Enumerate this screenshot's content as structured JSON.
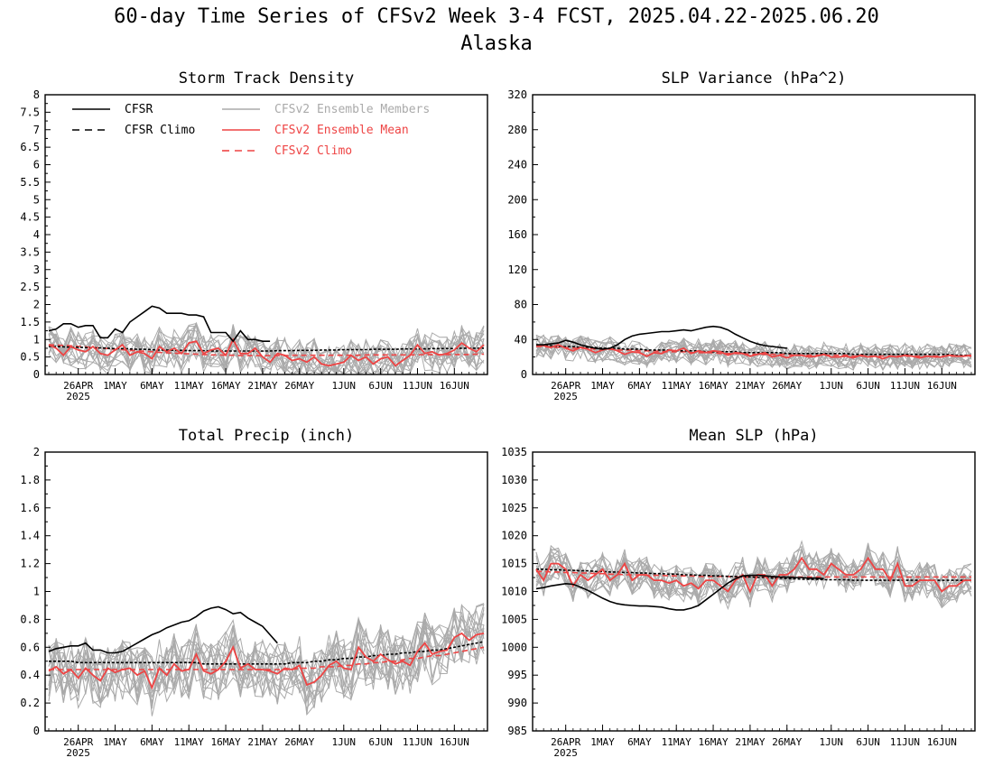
{
  "figure": {
    "title": "60-day Time Series of CFSv2 Week 3-4 FCST, 2025.04.22-2025.06.20",
    "region": "Alaska"
  },
  "legend": {
    "entries": [
      {
        "label": "CFSR",
        "color": "#000000",
        "dash": "solid"
      },
      {
        "label": "CFSR Climo",
        "color": "#000000",
        "dash": "dashed"
      },
      {
        "label": "CFSv2 Ensemble Members",
        "color": "#aaaaaa",
        "dash": "solid"
      },
      {
        "label": "CFSv2 Ensemble Mean",
        "color": "#ee4444",
        "dash": "solid"
      },
      {
        "label": "CFSv2 Climo",
        "color": "#ee4444",
        "dash": "dashed"
      }
    ]
  },
  "colors": {
    "cfsr": "#000000",
    "members": "#aaaaaa",
    "ens_mean": "#ee4444",
    "cfsv2_climo": "#ee4444"
  },
  "x_axis": {
    "day_count": 60,
    "start_date": "2025-04-22",
    "end_date": "2025-06-20",
    "ticks": [
      {
        "day": 4,
        "label": "26APR",
        "sublabel": "2025"
      },
      {
        "day": 9,
        "label": "1MAY"
      },
      {
        "day": 14,
        "label": "6MAY"
      },
      {
        "day": 19,
        "label": "11MAY"
      },
      {
        "day": 24,
        "label": "16MAY"
      },
      {
        "day": 29,
        "label": "21MAY"
      },
      {
        "day": 34,
        "label": "26MAY"
      },
      {
        "day": 40,
        "label": "1JUN"
      },
      {
        "day": 45,
        "label": "6JUN"
      },
      {
        "day": 50,
        "label": "11JUN"
      },
      {
        "day": 55,
        "label": "16JUN"
      }
    ]
  },
  "chart_data": [
    {
      "type": "line",
      "title": "Storm Track Density",
      "ylim": [
        0,
        8
      ],
      "yticks": [
        "0",
        "0.5",
        "1",
        "1.5",
        "2",
        "2.5",
        "3",
        "3.5",
        "4",
        "4.5",
        "5",
        "5.5",
        "6",
        "6.5",
        "7",
        "7.5",
        "8"
      ],
      "cfsr": [
        1.25,
        1.3,
        1.45,
        1.45,
        1.35,
        1.4,
        1.4,
        1.05,
        1.05,
        1.3,
        1.2,
        1.5,
        1.65,
        1.8,
        1.95,
        1.9,
        1.75,
        1.75,
        1.75,
        1.7,
        1.7,
        1.65,
        1.2,
        1.2,
        1.2,
        0.95,
        1.25,
        1.0,
        1.0,
        0.95,
        0.95
      ],
      "cfsr_climo": [
        0.8,
        0.8,
        0.79,
        0.78,
        0.78,
        0.77,
        0.76,
        0.76,
        0.75,
        0.74,
        0.74,
        0.73,
        0.72,
        0.72,
        0.71,
        0.7,
        0.7,
        0.69,
        0.69,
        0.68,
        0.68,
        0.68,
        0.67,
        0.67,
        0.67,
        0.67,
        0.67,
        0.67,
        0.67,
        0.67,
        0.67,
        0.68,
        0.68,
        0.68,
        0.69,
        0.69,
        0.69,
        0.7,
        0.7,
        0.7,
        0.71,
        0.71,
        0.71,
        0.71,
        0.72,
        0.72,
        0.72,
        0.72,
        0.73,
        0.73,
        0.73,
        0.73,
        0.74,
        0.74,
        0.74,
        0.74,
        0.75,
        0.75,
        0.75,
        0.75
      ],
      "ens_mean": [
        0.85,
        0.75,
        0.55,
        0.8,
        0.7,
        0.65,
        0.8,
        0.6,
        0.55,
        0.7,
        0.85,
        0.55,
        0.65,
        0.6,
        0.45,
        0.8,
        0.65,
        0.75,
        0.6,
        0.9,
        0.95,
        0.6,
        0.7,
        0.75,
        0.55,
        1.0,
        0.6,
        0.6,
        0.75,
        0.5,
        0.35,
        0.6,
        0.55,
        0.4,
        0.45,
        0.35,
        0.5,
        0.3,
        0.25,
        0.3,
        0.35,
        0.55,
        0.4,
        0.5,
        0.3,
        0.45,
        0.5,
        0.25,
        0.4,
        0.55,
        0.85,
        0.6,
        0.65,
        0.55,
        0.6,
        0.7,
        0.9,
        0.75,
        0.65,
        0.85
      ],
      "cfsv2_climo": [
        0.85,
        0.84,
        0.83,
        0.82,
        0.8,
        0.79,
        0.77,
        0.76,
        0.74,
        0.72,
        0.71,
        0.69,
        0.68,
        0.66,
        0.65,
        0.63,
        0.62,
        0.61,
        0.6,
        0.59,
        0.58,
        0.57,
        0.56,
        0.56,
        0.55,
        0.55,
        0.54,
        0.54,
        0.54,
        0.54,
        0.54,
        0.54,
        0.54,
        0.55,
        0.55,
        0.55,
        0.55,
        0.55,
        0.55,
        0.55,
        0.55,
        0.55,
        0.55,
        0.56,
        0.56,
        0.56,
        0.56,
        0.56,
        0.56,
        0.56,
        0.56,
        0.57,
        0.57,
        0.57,
        0.57,
        0.57,
        0.57,
        0.57,
        0.58,
        0.58
      ],
      "member_spread": 0.55,
      "member_min": 0
    },
    {
      "type": "line",
      "title": "SLP Variance (hPa^2)",
      "ylim": [
        0,
        320
      ],
      "yticks": [
        "0",
        "40",
        "80",
        "120",
        "160",
        "200",
        "240",
        "280",
        "320"
      ],
      "cfsr": [
        34,
        34,
        35,
        36,
        39,
        37,
        34,
        32,
        30,
        29,
        30,
        34,
        40,
        44,
        46,
        47,
        48,
        49,
        49,
        50,
        51,
        50,
        52,
        54,
        55,
        54,
        51,
        46,
        42,
        38,
        35,
        33,
        32,
        31,
        30
      ],
      "cfsr_climo": [
        33,
        33,
        33,
        32,
        32,
        32,
        31,
        31,
        31,
        30,
        30,
        30,
        29,
        29,
        29,
        28,
        28,
        28,
        28,
        27,
        27,
        27,
        27,
        26,
        26,
        26,
        26,
        26,
        25,
        25,
        25,
        25,
        25,
        25,
        24,
        24,
        24,
        24,
        24,
        24,
        24,
        24,
        24,
        23,
        23,
        23,
        23,
        23,
        23,
        23,
        23,
        23,
        23,
        23,
        23,
        23,
        23,
        22,
        22,
        22
      ],
      "ens_mean": [
        33,
        33,
        31,
        34,
        30,
        27,
        31,
        29,
        25,
        28,
        30,
        27,
        23,
        26,
        25,
        21,
        25,
        24,
        28,
        27,
        30,
        24,
        27,
        25,
        27,
        26,
        22,
        25,
        24,
        21,
        23,
        25,
        20,
        22,
        19,
        22,
        22,
        20,
        21,
        23,
        20,
        20,
        21,
        19,
        22,
        20,
        21,
        18,
        21,
        20,
        22,
        21,
        19,
        21,
        20,
        20,
        22,
        21,
        21,
        22
      ],
      "cfsv2_climo": [
        32,
        32,
        31,
        31,
        31,
        30,
        30,
        30,
        29,
        29,
        29,
        28,
        28,
        28,
        27,
        27,
        27,
        26,
        26,
        26,
        26,
        25,
        25,
        25,
        25,
        24,
        24,
        24,
        24,
        23,
        23,
        23,
        23,
        23,
        23,
        22,
        22,
        22,
        22,
        22,
        22,
        22,
        22,
        21,
        21,
        21,
        21,
        21,
        21,
        21,
        21,
        21,
        21,
        21,
        21,
        21,
        21,
        21,
        21,
        21
      ],
      "member_spread": 14,
      "member_min": 5
    },
    {
      "type": "line",
      "title": "Total Precip (inch)",
      "ylim": [
        0,
        2
      ],
      "yticks": [
        "0",
        "0.2",
        "0.4",
        "0.6",
        "0.8",
        "1",
        "1.2",
        "1.4",
        "1.6",
        "1.8",
        "2"
      ],
      "cfsr": [
        0.57,
        0.59,
        0.6,
        0.61,
        0.61,
        0.63,
        0.58,
        0.58,
        0.56,
        0.56,
        0.57,
        0.6,
        0.63,
        0.66,
        0.69,
        0.71,
        0.74,
        0.76,
        0.78,
        0.79,
        0.82,
        0.86,
        0.88,
        0.89,
        0.87,
        0.84,
        0.85,
        0.81,
        0.78,
        0.75,
        0.69,
        0.63
      ],
      "cfsr_climo": [
        0.5,
        0.5,
        0.5,
        0.5,
        0.49,
        0.49,
        0.49,
        0.49,
        0.49,
        0.49,
        0.49,
        0.49,
        0.49,
        0.49,
        0.49,
        0.49,
        0.49,
        0.49,
        0.49,
        0.49,
        0.49,
        0.48,
        0.48,
        0.48,
        0.48,
        0.48,
        0.48,
        0.48,
        0.48,
        0.48,
        0.48,
        0.48,
        0.48,
        0.49,
        0.49,
        0.49,
        0.5,
        0.5,
        0.51,
        0.51,
        0.52,
        0.52,
        0.53,
        0.53,
        0.54,
        0.54,
        0.55,
        0.55,
        0.56,
        0.56,
        0.57,
        0.57,
        0.58,
        0.58,
        0.59,
        0.6,
        0.61,
        0.62,
        0.63,
        0.64
      ],
      "ens_mean": [
        0.43,
        0.46,
        0.41,
        0.44,
        0.38,
        0.45,
        0.4,
        0.36,
        0.45,
        0.42,
        0.44,
        0.45,
        0.4,
        0.43,
        0.31,
        0.45,
        0.4,
        0.48,
        0.43,
        0.44,
        0.55,
        0.43,
        0.41,
        0.44,
        0.5,
        0.6,
        0.45,
        0.48,
        0.44,
        0.44,
        0.43,
        0.41,
        0.45,
        0.44,
        0.47,
        0.33,
        0.35,
        0.4,
        0.47,
        0.5,
        0.45,
        0.44,
        0.6,
        0.53,
        0.5,
        0.55,
        0.51,
        0.48,
        0.5,
        0.47,
        0.57,
        0.63,
        0.55,
        0.57,
        0.58,
        0.67,
        0.7,
        0.65,
        0.69,
        0.7
      ],
      "cfsv2_climo": [
        0.44,
        0.44,
        0.44,
        0.44,
        0.44,
        0.44,
        0.44,
        0.44,
        0.44,
        0.44,
        0.44,
        0.44,
        0.44,
        0.44,
        0.44,
        0.44,
        0.44,
        0.44,
        0.44,
        0.44,
        0.44,
        0.44,
        0.44,
        0.44,
        0.44,
        0.44,
        0.44,
        0.44,
        0.44,
        0.44,
        0.44,
        0.44,
        0.44,
        0.44,
        0.45,
        0.45,
        0.45,
        0.46,
        0.46,
        0.46,
        0.47,
        0.47,
        0.48,
        0.48,
        0.49,
        0.49,
        0.5,
        0.5,
        0.51,
        0.52,
        0.52,
        0.53,
        0.54,
        0.54,
        0.55,
        0.56,
        0.57,
        0.58,
        0.59,
        0.6
      ],
      "member_spread": 0.22,
      "member_min": 0.1
    },
    {
      "type": "line",
      "title": "Mean SLP (hPa)",
      "ylim": [
        985,
        1035
      ],
      "yticks": [
        "985",
        "990",
        "995",
        "1000",
        "1005",
        "1010",
        "1015",
        "1020",
        "1025",
        "1030",
        "1035"
      ],
      "cfsr": [
        1010.5,
        1010.7,
        1011,
        1011.2,
        1011.4,
        1011.3,
        1010.8,
        1010.2,
        1009.5,
        1008.8,
        1008.2,
        1007.8,
        1007.6,
        1007.5,
        1007.4,
        1007.4,
        1007.3,
        1007.2,
        1006.9,
        1006.7,
        1006.7,
        1007,
        1007.5,
        1008.5,
        1009.5,
        1010.5,
        1011.5,
        1012.3,
        1012.8,
        1012.9,
        1012.9,
        1012.8,
        1012.7,
        1012.6,
        1012.6,
        1012.5,
        1012.5,
        1012.4,
        1012.4,
        1012.3
      ],
      "cfsr_climo": [
        1014,
        1014,
        1013.9,
        1013.9,
        1013.8,
        1013.8,
        1013.7,
        1013.7,
        1013.6,
        1013.6,
        1013.5,
        1013.5,
        1013.4,
        1013.4,
        1013.3,
        1013.3,
        1013.2,
        1013.2,
        1013.1,
        1013.1,
        1013,
        1013,
        1012.9,
        1012.9,
        1012.8,
        1012.8,
        1012.7,
        1012.7,
        1012.6,
        1012.6,
        1012.5,
        1012.5,
        1012.4,
        1012.4,
        1012.3,
        1012.3,
        1012.2,
        1012.2,
        1012.2,
        1012.1,
        1012.1,
        1012.1,
        1012.1,
        1012,
        1012,
        1012,
        1012,
        1012,
        1012,
        1012,
        1012,
        1012,
        1012,
        1012,
        1012,
        1012,
        1012,
        1012,
        1012,
        1012
      ],
      "ens_mean": [
        1014,
        1012,
        1015,
        1015,
        1014,
        1011,
        1013,
        1012,
        1013,
        1014,
        1012,
        1013,
        1015,
        1012,
        1013,
        1013,
        1012,
        1012,
        1011.5,
        1012,
        1011,
        1011.5,
        1010.5,
        1012,
        1012,
        1011,
        1010,
        1012,
        1013,
        1010,
        1013,
        1013,
        1011,
        1013,
        1013,
        1014,
        1016,
        1014,
        1014,
        1013,
        1015,
        1014,
        1013,
        1013,
        1014,
        1016,
        1014,
        1014,
        1012,
        1015,
        1011,
        1011,
        1012,
        1012,
        1012,
        1010,
        1011,
        1011,
        1012,
        1012
      ],
      "cfsv2_climo": [
        1013.6,
        1013.6,
        1013.5,
        1013.5,
        1013.4,
        1013.4,
        1013.3,
        1013.3,
        1013.2,
        1013.2,
        1013.1,
        1013.1,
        1013,
        1013,
        1013,
        1012.9,
        1012.9,
        1012.9,
        1012.8,
        1012.8,
        1012.8,
        1012.8,
        1012.7,
        1012.7,
        1012.7,
        1012.7,
        1012.7,
        1012.6,
        1012.6,
        1012.6,
        1012.6,
        1012.6,
        1012.6,
        1012.6,
        1012.6,
        1012.6,
        1012.6,
        1012.6,
        1012.6,
        1012.6,
        1012.6,
        1012.6,
        1012.6,
        1012.6,
        1012.6,
        1012.6,
        1012.6,
        1012.6,
        1012.6,
        1012.6,
        1012.6,
        1012.6,
        1012.6,
        1012.6,
        1012.6,
        1012.6,
        1012.6,
        1012.6,
        1012.6,
        1012.6
      ],
      "member_spread": 3.2,
      "member_min": 985
    }
  ]
}
